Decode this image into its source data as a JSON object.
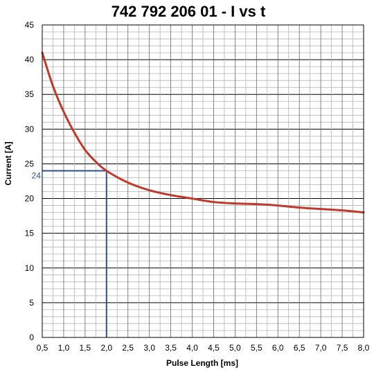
{
  "chart_data": {
    "type": "line",
    "title": "742 792 206 01  -  I vs t",
    "xlabel": "Pulse Length [ms]",
    "ylabel": "Current [A]",
    "xlim": [
      0.5,
      8.0
    ],
    "ylim": [
      0,
      45
    ],
    "x_ticks": [
      "0,5",
      "1,0",
      "1,5",
      "2,0",
      "2,5",
      "3,0",
      "3,5",
      "4,0",
      "4,5",
      "5,0",
      "5,5",
      "6,0",
      "6,5",
      "7,0",
      "7,5",
      "8,0"
    ],
    "y_ticks": [
      "0",
      "5",
      "10",
      "15",
      "20",
      "25",
      "30",
      "35",
      "40",
      "45"
    ],
    "grid": true,
    "series": [
      {
        "color": "#c0392b",
        "x": [
          0.5,
          0.75,
          1.0,
          1.25,
          1.5,
          1.75,
          2.0,
          2.5,
          3.0,
          3.5,
          4.0,
          4.5,
          5.0,
          5.5,
          6.0,
          6.5,
          7.0,
          7.5,
          8.0
        ],
        "y": [
          41.0,
          36.2,
          32.5,
          29.5,
          27.0,
          25.3,
          24.0,
          22.3,
          21.2,
          20.5,
          20.0,
          19.5,
          19.3,
          19.2,
          19.0,
          18.7,
          18.5,
          18.3,
          18.0
        ]
      }
    ],
    "annotation": {
      "label": "24",
      "x": 2.0,
      "y": 24,
      "color": "#2e4f8f"
    }
  }
}
